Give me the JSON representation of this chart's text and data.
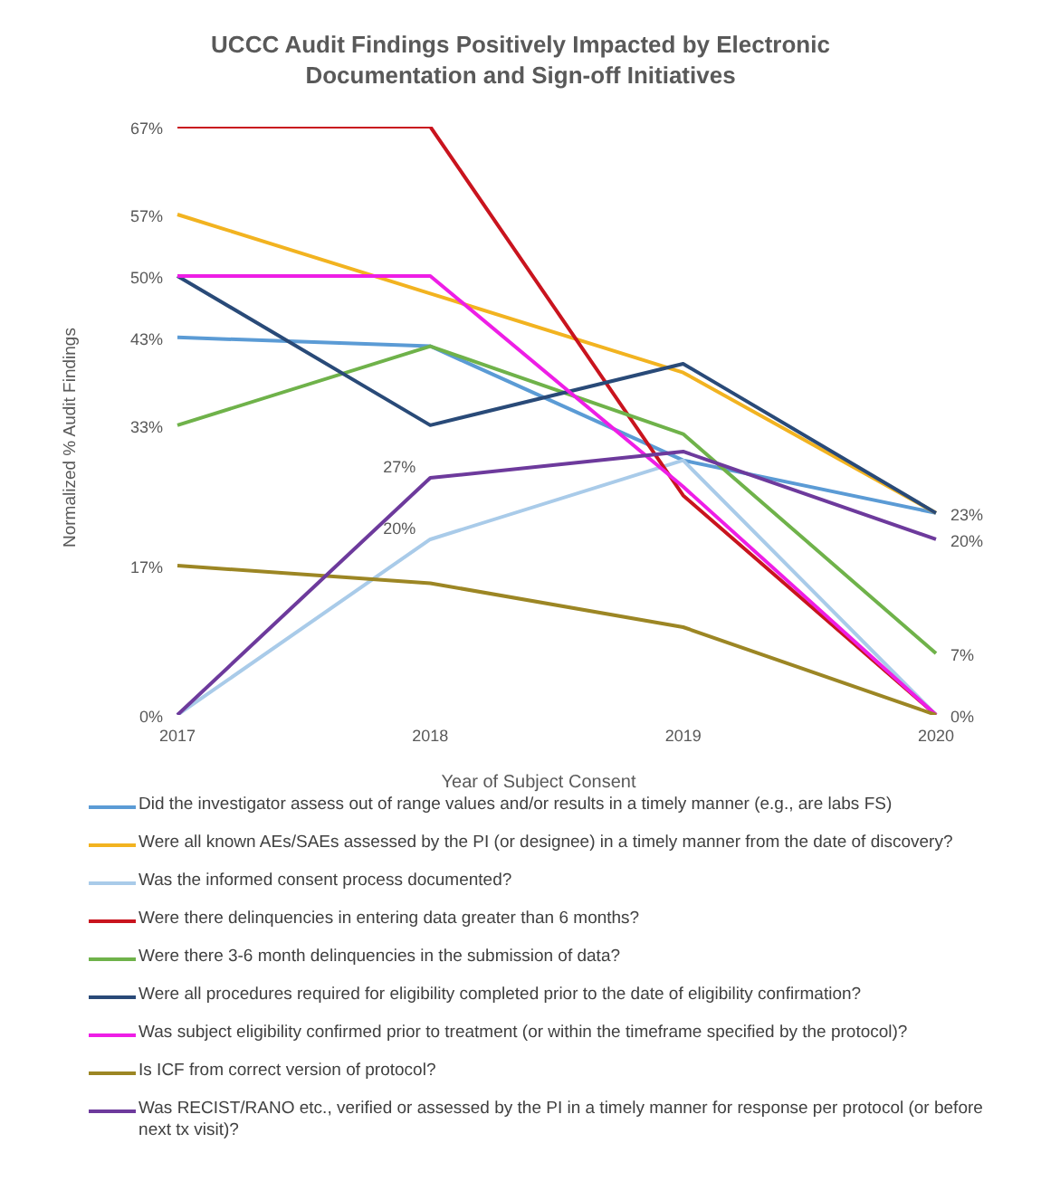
{
  "chart_data": {
    "type": "line",
    "title": "UCCC Audit Findings Positively Impacted by Electronic Documentation and Sign-off Initiatives",
    "xlabel": "Year of Subject Consent",
    "ylabel": "Normalized % Audit Findings",
    "categories": [
      "2017",
      "2018",
      "2019",
      "2020"
    ],
    "tick_labels": "x",
    "legend": "bottom",
    "marker": "none",
    "line_style": "solid",
    "series": [
      {
        "name": "Did the investigator assess out of range values and/or results in a timely manner (e.g., are labs FS)",
        "color": "#5b9bd5",
        "values": [
          43,
          42,
          29,
          23
        ],
        "value_labels": [
          "43%",
          null,
          null,
          "23%"
        ]
      },
      {
        "name": "Were all known AEs/SAEs assessed by the PI (or designee) in a timely manner from the date of discovery?",
        "color": "#f2b320",
        "values": [
          57,
          48,
          39,
          23
        ],
        "value_labels": [
          "57%",
          null,
          null,
          null
        ]
      },
      {
        "name": "Was the informed consent process documented?",
        "color": "#a9cbe9",
        "values": [
          0,
          20,
          29,
          0
        ],
        "value_labels": [
          null,
          "20%",
          null,
          null
        ]
      },
      {
        "name": "Were there delinquencies in entering data greater than 6 months?",
        "color": "#c9141e",
        "values": [
          67,
          67,
          25,
          0
        ],
        "value_labels": [
          "67%",
          null,
          null,
          null
        ]
      },
      {
        "name": "Were there 3-6 month delinquencies in the submission of data?",
        "color": "#6fb24a",
        "values": [
          33,
          42,
          32,
          7
        ],
        "value_labels": [
          "33%",
          null,
          null,
          "7%"
        ]
      },
      {
        "name": "Were all procedures required for eligibility completed prior to the date of eligibility confirmation?",
        "color": "#294a78",
        "values": [
          50,
          33,
          40,
          23
        ],
        "value_labels": [
          "50%",
          null,
          null,
          null
        ]
      },
      {
        "name": "Was subject eligibility confirmed prior to treatment (or within the timeframe specified by the protocol)?",
        "color": "#ee1ee6",
        "values": [
          50,
          50,
          26,
          0
        ],
        "value_labels": [
          null,
          null,
          null,
          "0%"
        ]
      },
      {
        "name": "Is ICF from correct version of protocol?",
        "color": "#9c8624",
        "values": [
          17,
          15,
          10,
          0
        ],
        "value_labels": [
          "17%",
          null,
          null,
          null
        ]
      },
      {
        "name": "Was RECIST/RANO etc., verified or assessed by the PI in a timely manner for response per protocol (or before next tx visit)?",
        "color": "#6d3a9c",
        "values": [
          0,
          27,
          30,
          20
        ],
        "value_labels": [
          "0%",
          "27%",
          null,
          "20%"
        ]
      }
    ]
  }
}
